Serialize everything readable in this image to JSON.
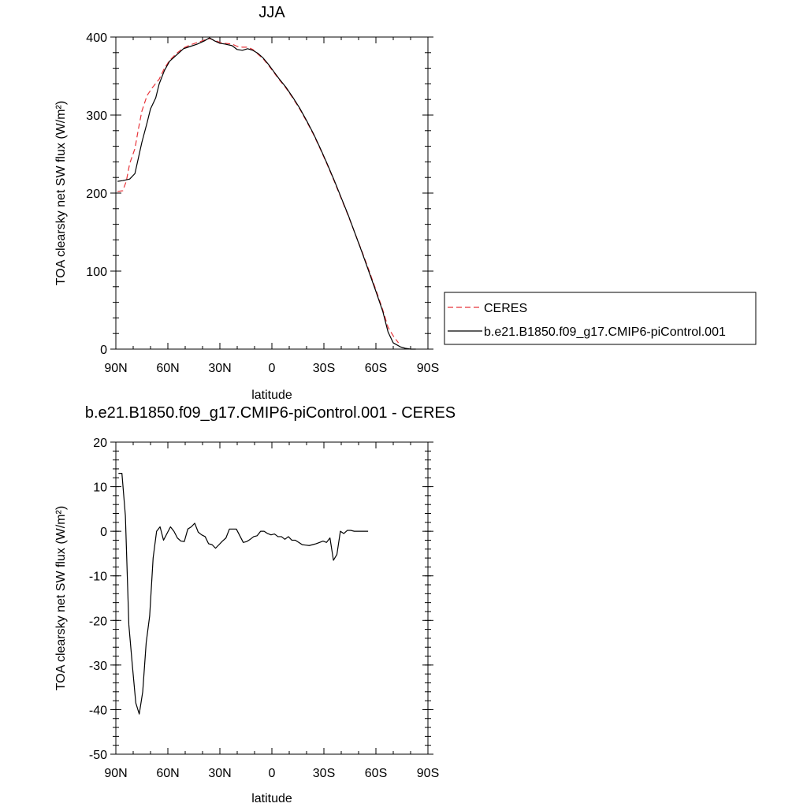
{
  "chart_data": [
    {
      "type": "line",
      "title": "JJA",
      "xlabel": "latitude",
      "ylabel": "TOA clearsky net SW flux (W/m²)",
      "xlim": [
        90,
        -90
      ],
      "ylim": [
        0,
        400
      ],
      "xticks": [
        90,
        60,
        30,
        0,
        -30,
        -60,
        -90
      ],
      "xtick_labels": [
        "90N",
        "60N",
        "30N",
        "0",
        "30S",
        "60S",
        "90S"
      ],
      "yticks": [
        0,
        100,
        200,
        300,
        400
      ],
      "ytick_labels": [
        "0",
        "100",
        "200",
        "300",
        "400"
      ],
      "grid": false,
      "legend_position": "right",
      "series": [
        {
          "name": "CERES",
          "color": "#e8343a",
          "dash": "dashed",
          "points": [
            [
              89,
              202
            ],
            [
              86,
              203
            ],
            [
              84,
              215
            ],
            [
              82,
              238
            ],
            [
              79,
              257
            ],
            [
              77,
              282
            ],
            [
              75,
              305
            ],
            [
              72,
              325
            ],
            [
              69,
              335
            ],
            [
              65,
              346
            ],
            [
              62,
              360
            ],
            [
              59,
              370
            ],
            [
              55,
              379
            ],
            [
              51,
              386
            ],
            [
              47,
              390
            ],
            [
              43,
              393
            ],
            [
              39,
              396
            ],
            [
              36,
              398
            ],
            [
              33,
              396
            ],
            [
              30,
              393
            ],
            [
              27,
              392
            ],
            [
              23,
              391
            ],
            [
              20,
              388
            ],
            [
              17,
              387
            ],
            [
              14,
              387
            ],
            [
              11,
              384
            ],
            [
              8,
              378
            ],
            [
              5,
              372
            ],
            [
              2,
              364
            ],
            [
              -1,
              355
            ],
            [
              -4,
              346
            ],
            [
              -8,
              335
            ],
            [
              -12,
              322
            ],
            [
              -16,
              308
            ],
            [
              -20,
              292
            ],
            [
              -24,
              275
            ],
            [
              -28,
              256
            ],
            [
              -32,
              236
            ],
            [
              -36,
              215
            ],
            [
              -40,
              193
            ],
            [
              -44,
              171
            ],
            [
              -48,
              148
            ],
            [
              -52,
              125
            ],
            [
              -56,
              101
            ],
            [
              -60,
              76
            ],
            [
              -64,
              50
            ],
            [
              -67,
              28
            ],
            [
              -70,
              17
            ],
            [
              -73,
              8
            ]
          ]
        },
        {
          "name": "b.e21.B1850.f09_g17.CMIP6-piControl.001",
          "color": "#000000",
          "dash": "solid",
          "points": [
            [
              89,
              215
            ],
            [
              86,
              216
            ],
            [
              82,
              218
            ],
            [
              79,
              225
            ],
            [
              77,
              245
            ],
            [
              75,
              265
            ],
            [
              72,
              290
            ],
            [
              70,
              308
            ],
            [
              67,
              322
            ],
            [
              65,
              340
            ],
            [
              62,
              357
            ],
            [
              59,
              369
            ],
            [
              55,
              377
            ],
            [
              51,
              385
            ],
            [
              47,
              388
            ],
            [
              43,
              391
            ],
            [
              39,
              395
            ],
            [
              36,
              399
            ],
            [
              33,
              395
            ],
            [
              30,
              392
            ],
            [
              27,
              391
            ],
            [
              23,
              389
            ],
            [
              20,
              384
            ],
            [
              17,
              383
            ],
            [
              14,
              385
            ],
            [
              11,
              383
            ],
            [
              8,
              379
            ],
            [
              5,
              373
            ],
            [
              2,
              365
            ],
            [
              -1,
              356
            ],
            [
              -4,
              347
            ],
            [
              -8,
              336
            ],
            [
              -12,
              323
            ],
            [
              -16,
              309
            ],
            [
              -20,
              293
            ],
            [
              -24,
              276
            ],
            [
              -28,
              257
            ],
            [
              -32,
              237
            ],
            [
              -36,
              216
            ],
            [
              -40,
              194
            ],
            [
              -44,
              172
            ],
            [
              -48,
              148
            ],
            [
              -52,
              124
            ],
            [
              -56,
              99
            ],
            [
              -60,
              74
            ],
            [
              -64,
              48
            ],
            [
              -67,
              22
            ],
            [
              -70,
              8
            ],
            [
              -74,
              3
            ],
            [
              -77,
              1
            ],
            [
              -80,
              0
            ],
            [
              -83,
              0
            ]
          ]
        }
      ]
    },
    {
      "type": "line",
      "title": "b.e21.B1850.f09_g17.CMIP6-piControl.001 - CERES",
      "xlabel": "latitude",
      "ylabel": "TOA clearsky net SW flux (W/m²)",
      "xlim": [
        90,
        -90
      ],
      "ylim": [
        -50,
        20
      ],
      "xticks": [
        90,
        60,
        30,
        0,
        -30,
        -60,
        -90
      ],
      "xtick_labels": [
        "90N",
        "60N",
        "30N",
        "0",
        "30S",
        "60S",
        "90S"
      ],
      "yticks": [
        20,
        10,
        0,
        -10,
        -20,
        -30,
        -40,
        -50
      ],
      "ytick_labels": [
        "20",
        "10",
        "0",
        "-10",
        "-20",
        "-30",
        "-40",
        "-50"
      ],
      "grid": false,
      "series": [
        {
          "color": "#000000",
          "dash": "solid",
          "points": [
            [
              88.5,
              13
            ],
            [
              86.5,
              13
            ],
            [
              84.5,
              3.5
            ],
            [
              82.5,
              -21
            ],
            [
              80.5,
              -30
            ],
            [
              78.5,
              -38.5
            ],
            [
              76.5,
              -41
            ],
            [
              74.5,
              -36
            ],
            [
              72.5,
              -25
            ],
            [
              70.5,
              -19
            ],
            [
              68.5,
              -6
            ],
            [
              66.5,
              0
            ],
            [
              64.5,
              1
            ],
            [
              62.5,
              -2
            ],
            [
              58.5,
              1
            ],
            [
              56.5,
              0
            ],
            [
              54.5,
              -1.5
            ],
            [
              52.5,
              -2.2
            ],
            [
              50.5,
              -2.3
            ],
            [
              48.5,
              0.5
            ],
            [
              46.5,
              1
            ],
            [
              44.5,
              1.8
            ],
            [
              42.5,
              -0.2
            ],
            [
              40.5,
              -0.8
            ],
            [
              38.5,
              -1.2
            ],
            [
              36.5,
              -2.8
            ],
            [
              34.5,
              -3
            ],
            [
              32.5,
              -3.8
            ],
            [
              30.5,
              -3
            ],
            [
              28.5,
              -2.2
            ],
            [
              26.5,
              -1.5
            ],
            [
              24.5,
              0.5
            ],
            [
              22.5,
              0.5
            ],
            [
              20.5,
              0.5
            ],
            [
              18.5,
              -1
            ],
            [
              16.5,
              -2.5
            ],
            [
              14.5,
              -2.3
            ],
            [
              12.5,
              -1.8
            ],
            [
              10.5,
              -1.2
            ],
            [
              8.5,
              -1
            ],
            [
              6.5,
              0
            ],
            [
              4.5,
              0
            ],
            [
              2.5,
              -0.5
            ],
            [
              0.5,
              -0.8
            ],
            [
              -1.5,
              -0.6
            ],
            [
              -3.5,
              -1.2
            ],
            [
              -5.5,
              -1.2
            ],
            [
              -7.5,
              -1.8
            ],
            [
              -9.5,
              -1.2
            ],
            [
              -11.5,
              -2
            ],
            [
              -13.5,
              -2
            ],
            [
              -15.5,
              -2.5
            ],
            [
              -17.5,
              -3
            ],
            [
              -19.5,
              -3.1
            ],
            [
              -21.5,
              -3.2
            ],
            [
              -23.5,
              -3
            ],
            [
              -25.5,
              -2.8
            ],
            [
              -27.5,
              -2.5
            ],
            [
              -29.5,
              -2.2
            ],
            [
              -31.5,
              -2.5
            ],
            [
              -33.5,
              -1.5
            ],
            [
              -35.5,
              -6.5
            ],
            [
              -37.5,
              -5.2
            ],
            [
              -39.5,
              0
            ],
            [
              -41.5,
              -0.5
            ],
            [
              -43.5,
              0.2
            ],
            [
              -45.5,
              0.2
            ],
            [
              -47.5,
              0
            ],
            [
              -49.5,
              0
            ],
            [
              -51.5,
              0
            ],
            [
              -53.5,
              0
            ],
            [
              -55.5,
              0
            ]
          ]
        }
      ]
    }
  ]
}
